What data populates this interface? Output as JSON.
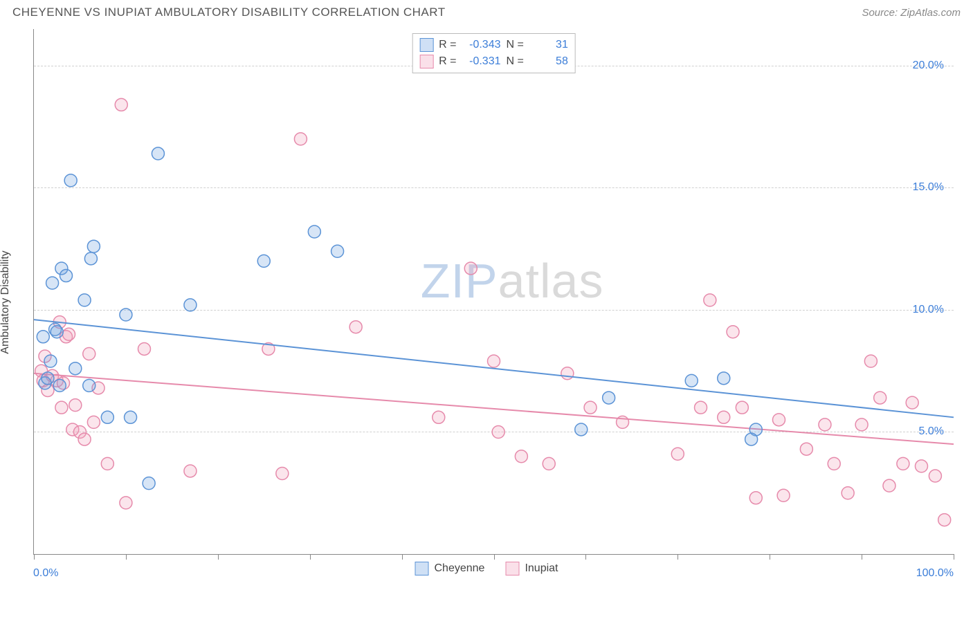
{
  "title": "CHEYENNE VS INUPIAT AMBULATORY DISABILITY CORRELATION CHART",
  "source": "Source: ZipAtlas.com",
  "watermark": {
    "bold": "ZIP",
    "rest": "atlas"
  },
  "ylabel": "Ambulatory Disability",
  "chart": {
    "type": "scatter",
    "xlim": [
      0,
      100
    ],
    "ylim": [
      0,
      21.5
    ],
    "yticks": [
      5.0,
      10.0,
      15.0,
      20.0
    ],
    "ytick_labels": [
      "5.0%",
      "10.0%",
      "15.0%",
      "20.0%"
    ],
    "xticks": [
      0,
      10,
      20,
      30,
      40,
      50,
      60,
      70,
      80,
      90,
      100
    ],
    "xlim_labels": {
      "left": "0.0%",
      "right": "100.0%"
    },
    "grid_color": "#d8d8d8",
    "background_color": "#ffffff",
    "marker_radius": 9,
    "marker_stroke_width": 1.5,
    "marker_fill_opacity": 0.28,
    "line_width": 2
  },
  "series": {
    "cheyenne": {
      "label": "Cheyenne",
      "color": "#6fa3e0",
      "stroke": "#5b93d6",
      "R": "-0.343",
      "N": "31",
      "trend": {
        "x1": 0,
        "y1": 9.6,
        "x2": 100,
        "y2": 5.6
      },
      "points": [
        [
          1.0,
          8.9
        ],
        [
          1.2,
          7.0
        ],
        [
          1.5,
          7.2
        ],
        [
          1.8,
          7.9
        ],
        [
          2.0,
          11.1
        ],
        [
          2.3,
          9.2
        ],
        [
          2.5,
          9.1
        ],
        [
          2.8,
          6.9
        ],
        [
          3.0,
          11.7
        ],
        [
          3.5,
          11.4
        ],
        [
          4.0,
          15.3
        ],
        [
          4.5,
          7.6
        ],
        [
          5.5,
          10.4
        ],
        [
          6.0,
          6.9
        ],
        [
          6.2,
          12.1
        ],
        [
          6.5,
          12.6
        ],
        [
          8.0,
          5.6
        ],
        [
          10.0,
          9.8
        ],
        [
          10.5,
          5.6
        ],
        [
          12.5,
          2.9
        ],
        [
          13.5,
          16.4
        ],
        [
          17.0,
          10.2
        ],
        [
          25.0,
          12.0
        ],
        [
          30.5,
          13.2
        ],
        [
          33.0,
          12.4
        ],
        [
          59.5,
          5.1
        ],
        [
          62.5,
          6.4
        ],
        [
          71.5,
          7.1
        ],
        [
          75.0,
          7.2
        ],
        [
          78.5,
          5.1
        ],
        [
          78.0,
          4.7
        ]
      ]
    },
    "inupiat": {
      "label": "Inupiat",
      "color": "#f0a3bc",
      "stroke": "#e68aab",
      "R": "-0.331",
      "N": "58",
      "trend": {
        "x1": 0,
        "y1": 7.4,
        "x2": 100,
        "y2": 4.5
      },
      "points": [
        [
          0.8,
          7.5
        ],
        [
          1.0,
          7.1
        ],
        [
          1.2,
          8.1
        ],
        [
          1.5,
          6.7
        ],
        [
          2.0,
          7.3
        ],
        [
          2.5,
          7.1
        ],
        [
          2.8,
          9.5
        ],
        [
          3.0,
          6.0
        ],
        [
          3.2,
          7.0
        ],
        [
          3.5,
          8.9
        ],
        [
          3.8,
          9.0
        ],
        [
          4.2,
          5.1
        ],
        [
          4.5,
          6.1
        ],
        [
          5.0,
          5.0
        ],
        [
          5.5,
          4.7
        ],
        [
          6.0,
          8.2
        ],
        [
          6.5,
          5.4
        ],
        [
          7.0,
          6.8
        ],
        [
          8.0,
          3.7
        ],
        [
          9.5,
          18.4
        ],
        [
          10.0,
          2.1
        ],
        [
          12.0,
          8.4
        ],
        [
          17.0,
          3.4
        ],
        [
          25.5,
          8.4
        ],
        [
          27.0,
          3.3
        ],
        [
          29.0,
          17.0
        ],
        [
          35.0,
          9.3
        ],
        [
          44.0,
          5.6
        ],
        [
          47.5,
          11.7
        ],
        [
          50.0,
          7.9
        ],
        [
          50.5,
          5.0
        ],
        [
          53.0,
          4.0
        ],
        [
          56.0,
          3.7
        ],
        [
          58.0,
          7.4
        ],
        [
          60.5,
          6.0
        ],
        [
          64.0,
          5.4
        ],
        [
          70.0,
          4.1
        ],
        [
          72.5,
          6.0
        ],
        [
          73.5,
          10.4
        ],
        [
          75.0,
          5.6
        ],
        [
          76.0,
          9.1
        ],
        [
          77.0,
          6.0
        ],
        [
          78.5,
          2.3
        ],
        [
          81.0,
          5.5
        ],
        [
          81.5,
          2.4
        ],
        [
          84.0,
          4.3
        ],
        [
          86.0,
          5.3
        ],
        [
          87.0,
          3.7
        ],
        [
          88.5,
          2.5
        ],
        [
          90.0,
          5.3
        ],
        [
          91.0,
          7.9
        ],
        [
          92.0,
          6.4
        ],
        [
          93.0,
          2.8
        ],
        [
          94.5,
          3.7
        ],
        [
          95.5,
          6.2
        ],
        [
          96.5,
          3.6
        ],
        [
          98.0,
          3.2
        ],
        [
          99.0,
          1.4
        ]
      ]
    }
  },
  "legend_top": [
    {
      "swatch": "cheyenne",
      "R_label": "R =",
      "N_label": "N ="
    },
    {
      "swatch": "inupiat",
      "R_label": "R =",
      "N_label": "N ="
    }
  ],
  "legend_bottom": [
    "cheyenne",
    "inupiat"
  ]
}
